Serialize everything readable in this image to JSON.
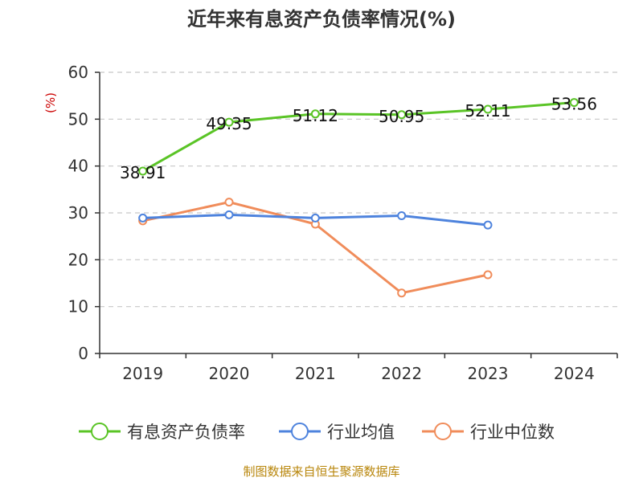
{
  "chart_data": {
    "type": "line",
    "title": "近年来有息资产负债率情况(%)",
    "ylabel": "(%)",
    "xlabel": "",
    "categories": [
      "2019",
      "2020",
      "2021",
      "2022",
      "2023",
      "2024"
    ],
    "ylim": [
      0,
      60
    ],
    "yticks": [
      0,
      10,
      20,
      30,
      40,
      50,
      60
    ],
    "grid": "horizontal-dashed",
    "legend_position": "bottom",
    "series": [
      {
        "name": "有息资产负债率",
        "color": "#5ac426",
        "values": [
          38.91,
          49.35,
          51.12,
          50.95,
          52.11,
          53.56
        ],
        "labels": [
          "38.91",
          "49.35",
          "51.12",
          "50.95",
          "52.11",
          "53.56"
        ]
      },
      {
        "name": "行业均值",
        "color": "#4e83dd",
        "values": [
          28.9,
          29.6,
          28.9,
          29.4,
          27.4,
          null
        ]
      },
      {
        "name": "行业中位数",
        "color": "#f08c5a",
        "values": [
          28.3,
          32.3,
          27.6,
          12.9,
          16.8,
          null
        ]
      }
    ]
  },
  "source": "制图数据来自恒生聚源数据库"
}
